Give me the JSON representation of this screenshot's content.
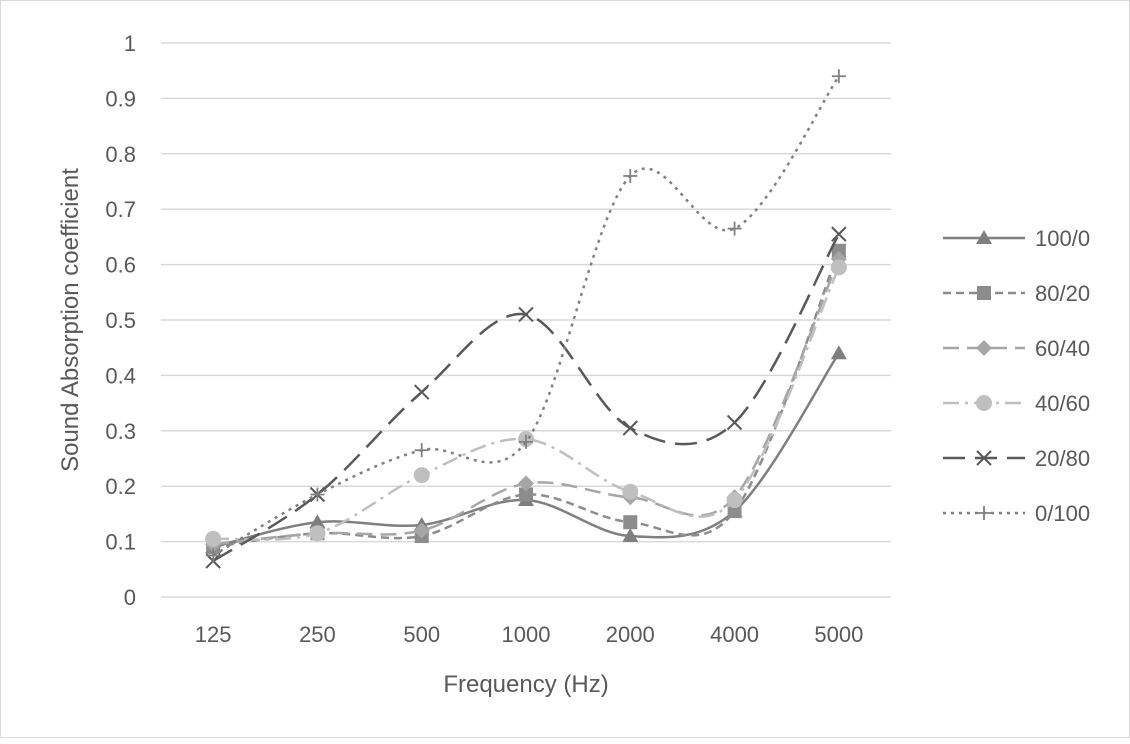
{
  "chart_data": {
    "type": "line",
    "smoothed": true,
    "title": "",
    "xlabel": "Frequency (Hz)",
    "ylabel": "Sound Absorption coefficient",
    "categories": [
      "125",
      "250",
      "500",
      "1000",
      "2000",
      "4000",
      "5000"
    ],
    "ylim": [
      0,
      1
    ],
    "yticks": [
      "0",
      "0.1",
      "0.2",
      "0.3",
      "0.4",
      "0.5",
      "0.6",
      "0.7",
      "0.8",
      "0.9",
      "1"
    ],
    "grid": "horizontal",
    "legend": "right",
    "series": [
      {
        "name": "100/0",
        "values": [
          0.09,
          0.135,
          0.13,
          0.175,
          0.11,
          0.155,
          0.44
        ],
        "color": "#7f7f7f",
        "dash": "solid",
        "marker": "triangle"
      },
      {
        "name": "80/20",
        "values": [
          0.09,
          0.115,
          0.11,
          0.185,
          0.135,
          0.155,
          0.625
        ],
        "color": "#8c8c8c",
        "dash": "dash",
        "marker": "square"
      },
      {
        "name": "60/40",
        "values": [
          0.095,
          0.115,
          0.12,
          0.205,
          0.18,
          0.18,
          0.61
        ],
        "color": "#a6a6a6",
        "dash": "longdash",
        "marker": "diamond"
      },
      {
        "name": "40/60",
        "values": [
          0.105,
          0.115,
          0.22,
          0.285,
          0.19,
          0.175,
          0.595
        ],
        "color": "#bfbfbf",
        "dash": "dashdot",
        "marker": "circle"
      },
      {
        "name": "20/80",
        "values": [
          0.065,
          0.185,
          0.37,
          0.51,
          0.305,
          0.315,
          0.655
        ],
        "color": "#595959",
        "dash": "longdash2",
        "marker": "x"
      },
      {
        "name": "0/100",
        "values": [
          0.075,
          0.185,
          0.265,
          0.28,
          0.76,
          0.665,
          0.94
        ],
        "color": "#808080",
        "dash": "dot",
        "marker": "plus"
      }
    ]
  }
}
